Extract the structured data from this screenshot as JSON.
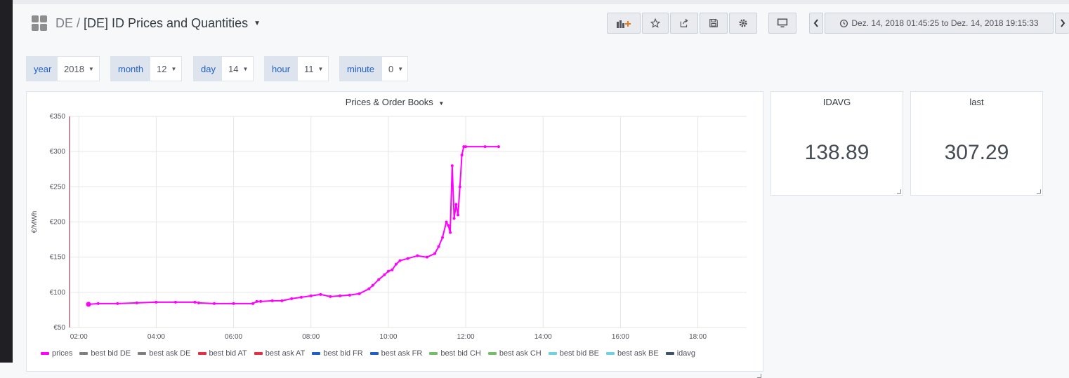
{
  "breadcrumb": {
    "folder": "DE",
    "separator": "/",
    "title": "[DE] ID Prices and Quantities"
  },
  "time_range": "Dez. 14, 2018 01:45:25 to Dez. 14, 2018 19:15:33",
  "variables": [
    {
      "label": "year",
      "value": "2018"
    },
    {
      "label": "month",
      "value": "12"
    },
    {
      "label": "day",
      "value": "14"
    },
    {
      "label": "hour",
      "value": "11"
    },
    {
      "label": "minute",
      "value": "0"
    }
  ],
  "panels": {
    "chart": {
      "title": "Prices & Order Books"
    },
    "idavg": {
      "title": "IDAVG",
      "value": "138.89"
    },
    "last": {
      "title": "last",
      "value": "307.29"
    }
  },
  "colors": {
    "prices": "#ff00ff",
    "accent": "#1f60c4"
  },
  "chart_data": {
    "type": "line",
    "ylabel": "€/MWh",
    "y_ticks": [
      "€50",
      "€100",
      "€150",
      "€200",
      "€250",
      "€300",
      "€350"
    ],
    "ylim": [
      50,
      350
    ],
    "x_ticks": [
      "02:00",
      "04:00",
      "06:00",
      "08:00",
      "10:00",
      "12:00",
      "14:00",
      "16:00",
      "18:00"
    ],
    "x_range_hours": [
      1.76,
      19.26
    ],
    "grid": true,
    "legend": [
      {
        "name": "prices",
        "color": "#ff00ff"
      },
      {
        "name": "best bid DE",
        "color": "#7f7f7f"
      },
      {
        "name": "best ask DE",
        "color": "#7f7f7f"
      },
      {
        "name": "best bid AT",
        "color": "#e02f44"
      },
      {
        "name": "best ask AT",
        "color": "#e02f44"
      },
      {
        "name": "best bid FR",
        "color": "#1f60c4"
      },
      {
        "name": "best ask FR",
        "color": "#1f60c4"
      },
      {
        "name": "best bid CH",
        "color": "#73bf69"
      },
      {
        "name": "best ask CH",
        "color": "#73bf69"
      },
      {
        "name": "best bid BE",
        "color": "#6ed0e0"
      },
      {
        "name": "best ask BE",
        "color": "#6ed0e0"
      },
      {
        "name": "idavg",
        "color": "#3f5566"
      }
    ],
    "series": [
      {
        "name": "prices",
        "x": [
          2.25,
          2.5,
          3.0,
          3.5,
          4.0,
          4.5,
          5.0,
          5.1,
          5.5,
          6.0,
          6.5,
          6.6,
          6.7,
          7.0,
          7.25,
          7.5,
          7.75,
          8.0,
          8.25,
          8.5,
          8.75,
          9.0,
          9.25,
          9.5,
          9.6,
          9.75,
          9.9,
          10.0,
          10.1,
          10.2,
          10.3,
          10.5,
          10.75,
          11.0,
          11.2,
          11.3,
          11.4,
          11.5,
          11.55,
          11.6,
          11.65,
          11.7,
          11.75,
          11.8,
          11.85,
          11.9,
          11.95,
          12.0,
          12.5,
          12.85
        ],
        "y": [
          83,
          84,
          84,
          85,
          86,
          86,
          86,
          85,
          84,
          84,
          84,
          87,
          87,
          88,
          88,
          91,
          93,
          95,
          97,
          94,
          95,
          96,
          98,
          105,
          110,
          118,
          125,
          130,
          132,
          140,
          145,
          148,
          152,
          150,
          155,
          165,
          178,
          200,
          195,
          185,
          280,
          205,
          225,
          210,
          250,
          295,
          307,
          307,
          307,
          307
        ]
      }
    ]
  }
}
